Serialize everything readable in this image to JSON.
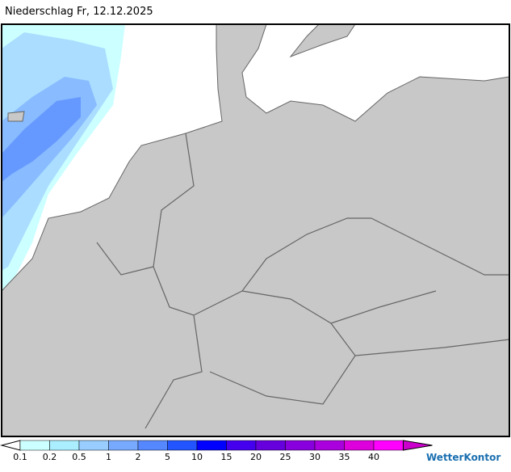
{
  "header": {
    "title": "Niederschlag Fr, 12.12.2025"
  },
  "legend": {
    "labels": [
      "0.1",
      "0.2",
      "0.5",
      "1",
      "2",
      "5",
      "10",
      "15",
      "20",
      "25",
      "30",
      "35",
      "40"
    ],
    "colors": [
      "#ffffff",
      "#ccffff",
      "#aaeeff",
      "#99ccff",
      "#77aaff",
      "#5588ff",
      "#2255ff",
      "#0000ff",
      "#4400ee",
      "#6600dd",
      "#8800dd",
      "#aa00dd",
      "#dd00dd",
      "#ff00ff",
      "#cc00cc"
    ]
  },
  "brand": {
    "name": "WetterKontor"
  }
}
